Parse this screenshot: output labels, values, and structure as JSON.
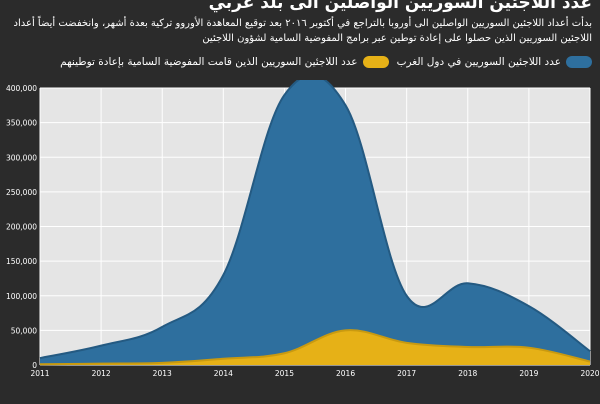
{
  "header": {
    "title": "عدد اللاجئين السوريين الواصلين الى بلد غربي",
    "subtitle": "بدأت أعداد اللاجئين السوريين الواصلين الى أوروبا بالتراجع في أكتوبر ٢٠١٦ بعد توقيع المعاهدة الأوروو تركية بعدة أشهر، وانخفضت أيضاً أعداد اللاجئين السوريين الذين حصلوا على إعادة توطين عبر برامج المفوضية السامية لشؤون اللاجئين"
  },
  "colors": {
    "background": "#2b2b2b",
    "plot_background": "#e5e5e5",
    "series_west": "#2e6f9e",
    "series_resettled": "#e6b117"
  },
  "chart_data": {
    "type": "area",
    "x": [
      2011,
      2012,
      2013,
      2014,
      2015,
      2016,
      2017,
      2018,
      2019,
      2020
    ],
    "x_tick_labels": [
      "2011",
      "2012",
      "2013",
      "2014",
      "2015",
      "2016",
      "2017",
      "2018",
      "2019",
      "2020"
    ],
    "series": [
      {
        "name": "عدد اللاجئين السوريين في دول الغرب",
        "color": "#2e6f9e",
        "values": [
          10000,
          28000,
          55000,
          130000,
          390000,
          375000,
          100000,
          118000,
          85000,
          20000
        ]
      },
      {
        "name": "عدد اللاجئين السوريين الذين قامت المفوضية السامية بإعادة توطينهم",
        "color": "#e6b117",
        "values": [
          1000,
          2000,
          3000,
          9000,
          17000,
          50000,
          32000,
          26000,
          25000,
          5000
        ]
      }
    ],
    "ylim": [
      0,
      400000
    ],
    "y_ticks": [
      0,
      50000,
      100000,
      150000,
      200000,
      250000,
      300000,
      350000,
      400000
    ],
    "y_tick_labels": [
      "0",
      "50,000",
      "100,000",
      "150,000",
      "200,000",
      "250,000",
      "300,000",
      "350,000",
      "400,000"
    ],
    "grid": true,
    "legend_position": "top"
  }
}
